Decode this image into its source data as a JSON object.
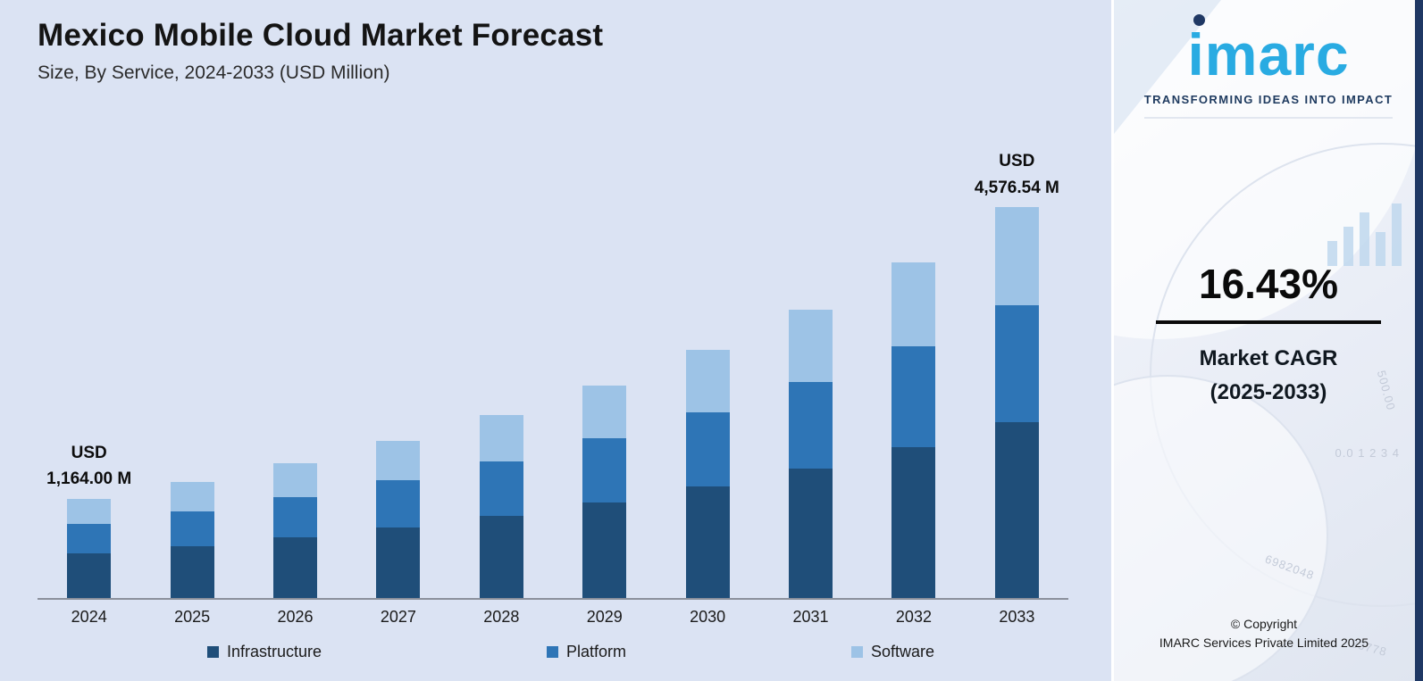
{
  "header": {
    "title": "Mexico Mobile Cloud Market Forecast",
    "subtitle": "Size, By Service, 2024-2033 (USD Million)"
  },
  "chart_data": {
    "type": "bar",
    "stacked": true,
    "title": "Mexico Mobile Cloud Market Forecast",
    "xlabel": "",
    "ylabel": "USD Million",
    "ylim": [
      0,
      4800
    ],
    "grid": false,
    "legend_position": "bottom",
    "categories": [
      "2024",
      "2025",
      "2026",
      "2027",
      "2028",
      "2029",
      "2030",
      "2031",
      "2032",
      "2033"
    ],
    "series": [
      {
        "name": "Infrastructure",
        "color": "#1f4e79",
        "values": [
          524,
          610,
          710,
          827,
          962,
          1121,
          1305,
          1519,
          1769,
          2059.54
        ]
      },
      {
        "name": "Platform",
        "color": "#2e75b6",
        "values": [
          349,
          407,
          474,
          551,
          642,
          747,
          870,
          1013,
          1179,
          1373
        ]
      },
      {
        "name": "Software",
        "color": "#9dc3e6",
        "values": [
          291,
          338,
          394,
          459,
          535,
          622,
          725,
          844,
          983,
          1144
        ]
      }
    ],
    "totals": [
      1164.0,
      1355.24,
      1577.91,
      1837.17,
      2138.98,
      2490.41,
      2899.58,
      3376.0,
      3930.68,
      4576.54
    ],
    "annotations": [
      {
        "index": 0,
        "lines": [
          "USD",
          "1,164.00 M"
        ]
      },
      {
        "index": 9,
        "lines": [
          "USD",
          "4,576.54 M"
        ]
      }
    ]
  },
  "sidebar": {
    "logo_word": "imarc",
    "tagline": "TRANSFORMING IDEAS INTO IMPACT",
    "cagr_value": "16.43%",
    "cagr_label_line1": "Market CAGR",
    "cagr_label_line2": "(2025-2033)",
    "copyright_line1": "© Copyright",
    "copyright_line2": "IMARC Services Private Limited 2025",
    "decor_numbers": [
      "500.00",
      "0.0  1 2 3 4",
      "6982048",
      "23778"
    ]
  },
  "colors": {
    "background": "#dbe3f3",
    "infrastructure": "#1f4e79",
    "platform": "#2e75b6",
    "software": "#9dc3e6",
    "logo_cyan": "#29abe2",
    "navy": "#1f3864"
  }
}
